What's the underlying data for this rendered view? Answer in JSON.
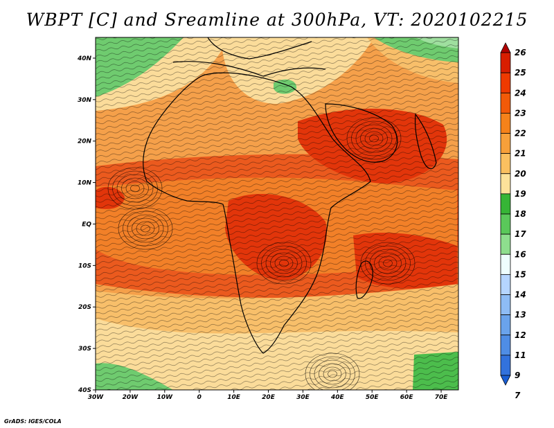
{
  "title": "WBPT [C] and Sreamline at 300hPa, VT: 2020102215",
  "credit": "GrADS: IGES/COLA",
  "lat_ticks": [
    "40N",
    "30N",
    "20N",
    "10N",
    "EQ",
    "10S",
    "20S",
    "30S",
    "40S"
  ],
  "lon_ticks": [
    "30W",
    "20W",
    "10W",
    "0",
    "10E",
    "20E",
    "30E",
    "40E",
    "50E",
    "60E",
    "70E"
  ],
  "extent": {
    "lon_min": -30,
    "lon_max": 75,
    "lat_min": -40,
    "lat_max": 45
  },
  "colorbar": {
    "labels": [
      "26",
      "25",
      "24",
      "23",
      "22",
      "21",
      "20",
      "19",
      "18",
      "17",
      "16",
      "15",
      "14",
      "13",
      "12",
      "11",
      "9",
      "7"
    ],
    "colors": [
      "#b00000",
      "#d81e00",
      "#ef3a00",
      "#f25a08",
      "#f5821a",
      "#f7a03a",
      "#fac060",
      "#fde29a",
      "#36b536",
      "#5ac85a",
      "#8ede8e",
      "#eefefe",
      "#b5d5ff",
      "#8ebcf5",
      "#6aa3ec",
      "#4f8de5",
      "#3272dd",
      "#1a5fd5"
    ]
  },
  "map": {
    "colors": {
      "t26": "#b00000",
      "t24": "#e2350a",
      "t23": "#eb5a1e",
      "t22": "#f28028",
      "t21": "#f5a04a",
      "t20": "#f8bf6a",
      "t19": "#fbdc9a",
      "t18": "#4cbd4c",
      "t17": "#6fcb6f",
      "t16": "#9fdf9f"
    }
  }
}
